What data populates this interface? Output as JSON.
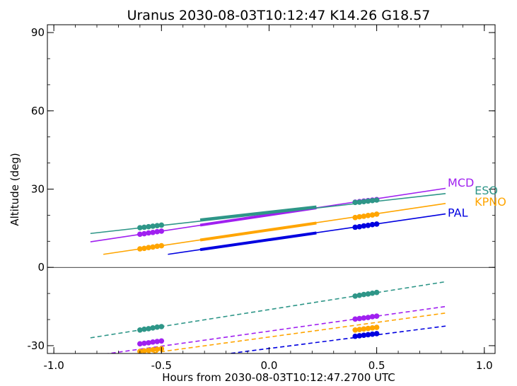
{
  "chart_data": {
    "type": "line",
    "title": "Uranus 2030-08-03T10:12:47  K14.26  G18.57",
    "xlabel": "Hours from 2030-08-03T10:12:47.2700 UTC",
    "ylabel": "Altitude (deg)",
    "xlim": [
      -1.03,
      1.05
    ],
    "ylim": [
      -33,
      93
    ],
    "xticks": [
      -1.0,
      -0.5,
      0.0,
      0.5,
      1.0
    ],
    "xtick_labels": [
      "-1.0",
      "-0.5",
      "0.0",
      "0.5",
      "1.0"
    ],
    "yticks": [
      -30,
      0,
      30,
      60,
      90
    ],
    "ytick_labels": [
      "-30",
      "0",
      "30",
      "60",
      "90"
    ],
    "zero_line": 0,
    "grid": false,
    "series": [
      {
        "name": "MCD",
        "color": "#a020f0",
        "above": {
          "x": [
            -0.83,
            0.82
          ],
          "y": [
            9.8,
            30.3
          ]
        },
        "thick": {
          "x": [
            -0.32,
            0.22
          ],
          "y": [
            16.2,
            22.8
          ]
        },
        "dots_left": {
          "x": [
            -0.6,
            -0.58,
            -0.56,
            -0.54,
            -0.52,
            -0.5
          ],
          "y": [
            12.7,
            12.9,
            13.2,
            13.4,
            13.7,
            13.9
          ]
        },
        "dots_right": {
          "x": [
            0.4,
            0.42,
            0.44,
            0.46,
            0.48,
            0.5
          ],
          "y": [
            25.0,
            25.2,
            25.4,
            25.6,
            25.8,
            26.0
          ]
        },
        "below": {
          "x": [
            -0.83,
            0.82
          ],
          "y": [
            -34.0,
            -15.0
          ]
        },
        "below_dots_left": {
          "x": [
            -0.6,
            -0.58,
            -0.56,
            -0.54,
            -0.52,
            -0.5
          ],
          "y": [
            -29.3,
            -29.1,
            -28.9,
            -28.6,
            -28.4,
            -28.2
          ]
        },
        "below_dots_right": {
          "x": [
            0.4,
            0.42,
            0.44,
            0.46,
            0.48,
            0.5
          ],
          "y": [
            -19.8,
            -19.6,
            -19.4,
            -19.2,
            -18.9,
            -18.7
          ]
        }
      },
      {
        "name": "ESO",
        "color": "#2e9688",
        "above": {
          "x": [
            -0.83,
            0.82
          ],
          "y": [
            13.0,
            28.3
          ]
        },
        "thick": {
          "x": [
            -0.32,
            0.22
          ],
          "y": [
            18.2,
            23.2
          ]
        },
        "dots_left": {
          "x": [
            -0.6,
            -0.58,
            -0.56,
            -0.54,
            -0.52,
            -0.5
          ],
          "y": [
            15.2,
            15.4,
            15.6,
            15.8,
            16.0,
            16.2
          ]
        },
        "dots_right": {
          "x": [
            0.4,
            0.42,
            0.44,
            0.46,
            0.48,
            0.5
          ],
          "y": [
            24.9,
            25.0,
            25.2,
            25.4,
            25.6,
            25.8
          ]
        },
        "below": {
          "x": [
            -0.83,
            0.82
          ],
          "y": [
            -27.0,
            -5.5
          ]
        },
        "below_dots_left": {
          "x": [
            -0.6,
            -0.58,
            -0.56,
            -0.54,
            -0.52,
            -0.5
          ],
          "y": [
            -24.0,
            -23.7,
            -23.5,
            -23.2,
            -22.9,
            -22.7
          ]
        },
        "below_dots_right": {
          "x": [
            0.4,
            0.42,
            0.44,
            0.46,
            0.48,
            0.5
          ],
          "y": [
            -11.0,
            -10.7,
            -10.4,
            -10.2,
            -9.9,
            -9.6
          ]
        }
      },
      {
        "name": "KPNO",
        "color": "#ffa500",
        "above": {
          "x": [
            -0.77,
            0.82
          ],
          "y": [
            5.0,
            24.5
          ]
        },
        "thick": {
          "x": [
            -0.32,
            0.22
          ],
          "y": [
            10.5,
            17.0
          ]
        },
        "dots_left": {
          "x": [
            -0.6,
            -0.58,
            -0.56,
            -0.54,
            -0.52,
            -0.5
          ],
          "y": [
            7.1,
            7.3,
            7.6,
            7.8,
            8.1,
            8.3
          ]
        },
        "dots_right": {
          "x": [
            0.4,
            0.42,
            0.44,
            0.46,
            0.48,
            0.5
          ],
          "y": [
            19.1,
            19.4,
            19.6,
            19.9,
            20.1,
            20.4
          ]
        },
        "below": {
          "x": [
            -0.83,
            0.82
          ],
          "y": [
            -36.0,
            -17.5
          ]
        },
        "below_dots_left": {
          "x": [
            -0.6,
            -0.58,
            -0.56,
            -0.54,
            -0.52,
            -0.5
          ],
          "y": [
            -32.2,
            -32.0,
            -31.8,
            -31.6,
            -31.4,
            -31.2
          ]
        },
        "below_dots_right": {
          "x": [
            0.4,
            0.42,
            0.44,
            0.46,
            0.48,
            0.5
          ],
          "y": [
            -24.0,
            -23.8,
            -23.6,
            -23.4,
            -23.2,
            -23.0
          ]
        }
      },
      {
        "name": "PAL",
        "color": "#0000e0",
        "above": {
          "x": [
            -0.47,
            0.82
          ],
          "y": [
            5.0,
            20.5
          ]
        },
        "thick": {
          "x": [
            -0.32,
            0.22
          ],
          "y": [
            6.8,
            13.2
          ]
        },
        "dots_left": {
          "x": [],
          "y": []
        },
        "dots_right": {
          "x": [
            0.4,
            0.42,
            0.44,
            0.46,
            0.48,
            0.5
          ],
          "y": [
            15.4,
            15.6,
            15.9,
            16.1,
            16.4,
            16.6
          ]
        },
        "below": {
          "x": [
            -0.47,
            0.82
          ],
          "y": [
            -36.0,
            -22.5
          ]
        },
        "below_dots_left": {
          "x": [],
          "y": []
        },
        "below_dots_right": {
          "x": [
            0.4,
            0.42,
            0.44,
            0.46,
            0.48,
            0.5
          ],
          "y": [
            -26.4,
            -26.2,
            -26.0,
            -25.8,
            -25.6,
            -25.4
          ]
        }
      }
    ],
    "series_labels": [
      {
        "text": "MCD",
        "color": "#a020f0",
        "x": 0.83,
        "y": 32.3
      },
      {
        "text": "ESO",
        "color": "#2e9688",
        "x": 0.955,
        "y": 29.3
      },
      {
        "text": "KPNO",
        "color": "#ffa500",
        "x": 0.955,
        "y": 25.0
      },
      {
        "text": "PAL",
        "color": "#0000e0",
        "x": 0.83,
        "y": 20.8
      }
    ]
  }
}
